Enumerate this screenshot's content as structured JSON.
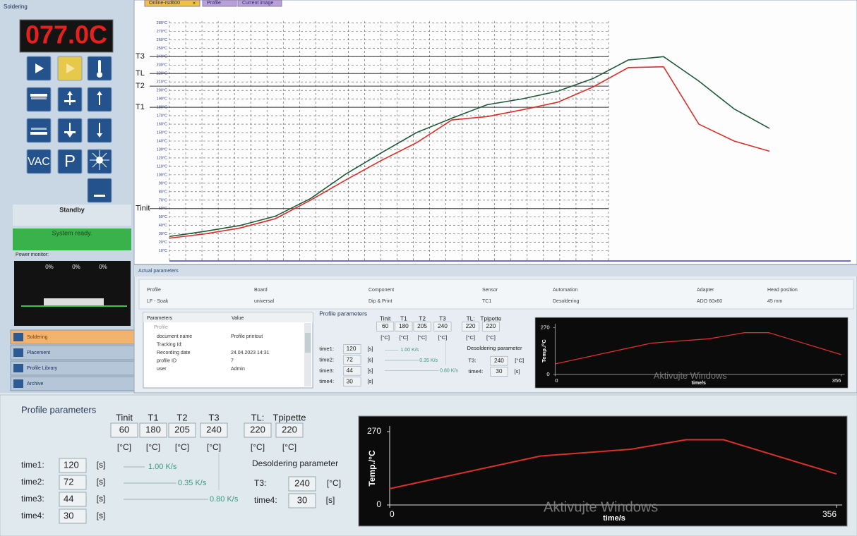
{
  "window": {
    "title": "Soldering",
    "display": "077.0C",
    "tabs": [
      "Online-rsd600",
      "Profile",
      "Current image"
    ],
    "tab_close": "×",
    "buttons": {
      "vac": "VAC",
      "p": "P"
    },
    "status": "Standby",
    "message": "System ready.",
    "power_monitor": {
      "label": "Power monitor:",
      "readings": [
        "0%",
        "0%",
        "0%"
      ]
    },
    "nav": [
      "Soldering",
      "Placement",
      "Profile Library",
      "Archive"
    ]
  },
  "chart_data": [
    {
      "type": "line",
      "ylim": [
        -2,
        282
      ],
      "yticks": [
        {
          "value": 280,
          "label": "280°C"
        },
        {
          "value": 270,
          "label": "270°C"
        },
        {
          "value": 260,
          "label": "260°C"
        },
        {
          "value": 250,
          "label": "250°C"
        },
        {
          "value": 240,
          "label": "240°C"
        },
        {
          "value": 230,
          "label": "230°C"
        },
        {
          "value": 220,
          "label": "220°C"
        },
        {
          "value": 210,
          "label": "210°C"
        },
        {
          "value": 200,
          "label": "200°C"
        },
        {
          "value": 190,
          "label": "190°C"
        },
        {
          "value": 180,
          "label": "180°C"
        },
        {
          "value": 170,
          "label": "170°C"
        },
        {
          "value": 160,
          "label": "160°C"
        },
        {
          "value": 150,
          "label": "150°C"
        },
        {
          "value": 140,
          "label": "140°C"
        },
        {
          "value": 130,
          "label": "130°C"
        },
        {
          "value": 120,
          "label": "120°C"
        },
        {
          "value": 110,
          "label": "110°C"
        },
        {
          "value": 100,
          "label": "100°C"
        },
        {
          "value": 90,
          "label": "90°C"
        },
        {
          "value": 80,
          "label": "80°C"
        },
        {
          "value": 70,
          "label": "70°C"
        },
        {
          "value": 60,
          "label": "60°C"
        },
        {
          "value": 50,
          "label": "50°C"
        },
        {
          "value": 40,
          "label": "40°C"
        },
        {
          "value": 30,
          "label": "30°C"
        },
        {
          "value": 20,
          "label": "20°C"
        },
        {
          "value": 10,
          "label": "10°C"
        }
      ],
      "grid": true,
      "reference_lines": [
        {
          "label": "T3",
          "value": 240
        },
        {
          "label": "TL",
          "value": 220
        },
        {
          "label": "T2",
          "value": 205
        },
        {
          "label": "T1",
          "value": 180
        },
        {
          "label": "Tinit",
          "value": 60
        }
      ],
      "series": [
        {
          "color": "#1f5a3a",
          "values": [
            27,
            33,
            40,
            51,
            72,
            101,
            126,
            150,
            167,
            183,
            190,
            199,
            214,
            236,
            240,
            211,
            178,
            155
          ]
        },
        {
          "color": "#d9302a",
          "values": [
            25,
            30,
            37,
            48,
            70,
            94,
            117,
            138,
            165,
            169,
            177,
            186,
            204,
            227,
            228,
            160,
            140,
            128
          ]
        }
      ]
    },
    {
      "type": "line",
      "ylabel": "Temp./°C",
      "xlabel": "time/s",
      "xlim": [
        0,
        356
      ],
      "xticks": [
        0,
        356
      ],
      "ylim": [
        0,
        270
      ],
      "yticks": [
        0,
        270
      ],
      "x": [
        0,
        120,
        192,
        236,
        266,
        356
      ],
      "values": [
        60,
        180,
        205,
        240,
        240,
        114
      ],
      "color": "#d9302a"
    }
  ],
  "actual_parameters": {
    "title": "Actual parameters",
    "headers": [
      "Profile",
      "Board",
      "Component",
      "Sensor",
      "Automation",
      "Adapter",
      "Head position"
    ],
    "values": [
      "LF - Soak",
      "universal",
      "Dip & Print",
      "TC1",
      "Desoldering",
      "ADO 60x60",
      "45 mm"
    ]
  },
  "property_grid": {
    "headers": [
      "Parameters",
      "Value"
    ],
    "group": "Profile",
    "rows": [
      [
        "document name",
        "Profile printout"
      ],
      [
        "Tracking Id:"
      ],
      [
        "Recording date",
        "24.04.2023 14:31"
      ],
      [
        "profile ID",
        "7"
      ],
      [
        "user",
        "Admin"
      ]
    ]
  },
  "profile_parameters": {
    "title": "Profile parameters",
    "temps": [
      {
        "label": "Tinit",
        "value": 60
      },
      {
        "label": "T1",
        "value": 180
      },
      {
        "label": "T2",
        "value": 205
      },
      {
        "label": "T3",
        "value": 240
      },
      {
        "label": "TL:",
        "value": 220
      },
      {
        "label": "Tpipette",
        "value": 220
      }
    ],
    "temp_unit": "[°C]",
    "times": [
      {
        "label": "time1:",
        "value": 120
      },
      {
        "label": "time2:",
        "value": 72
      },
      {
        "label": "time3:",
        "value": 44
      },
      {
        "label": "time4:",
        "value": 30
      }
    ],
    "time_unit": "[s]",
    "rates": [
      "1.00 K/s",
      "0.35 K/s",
      "0.80 K/s"
    ],
    "desoldering": {
      "title": "Desoldering parameter",
      "t3_label": "T3:",
      "t3": 240,
      "time4_label": "time4:",
      "time4": 30
    }
  },
  "watermark": "Aktivujte Windows"
}
